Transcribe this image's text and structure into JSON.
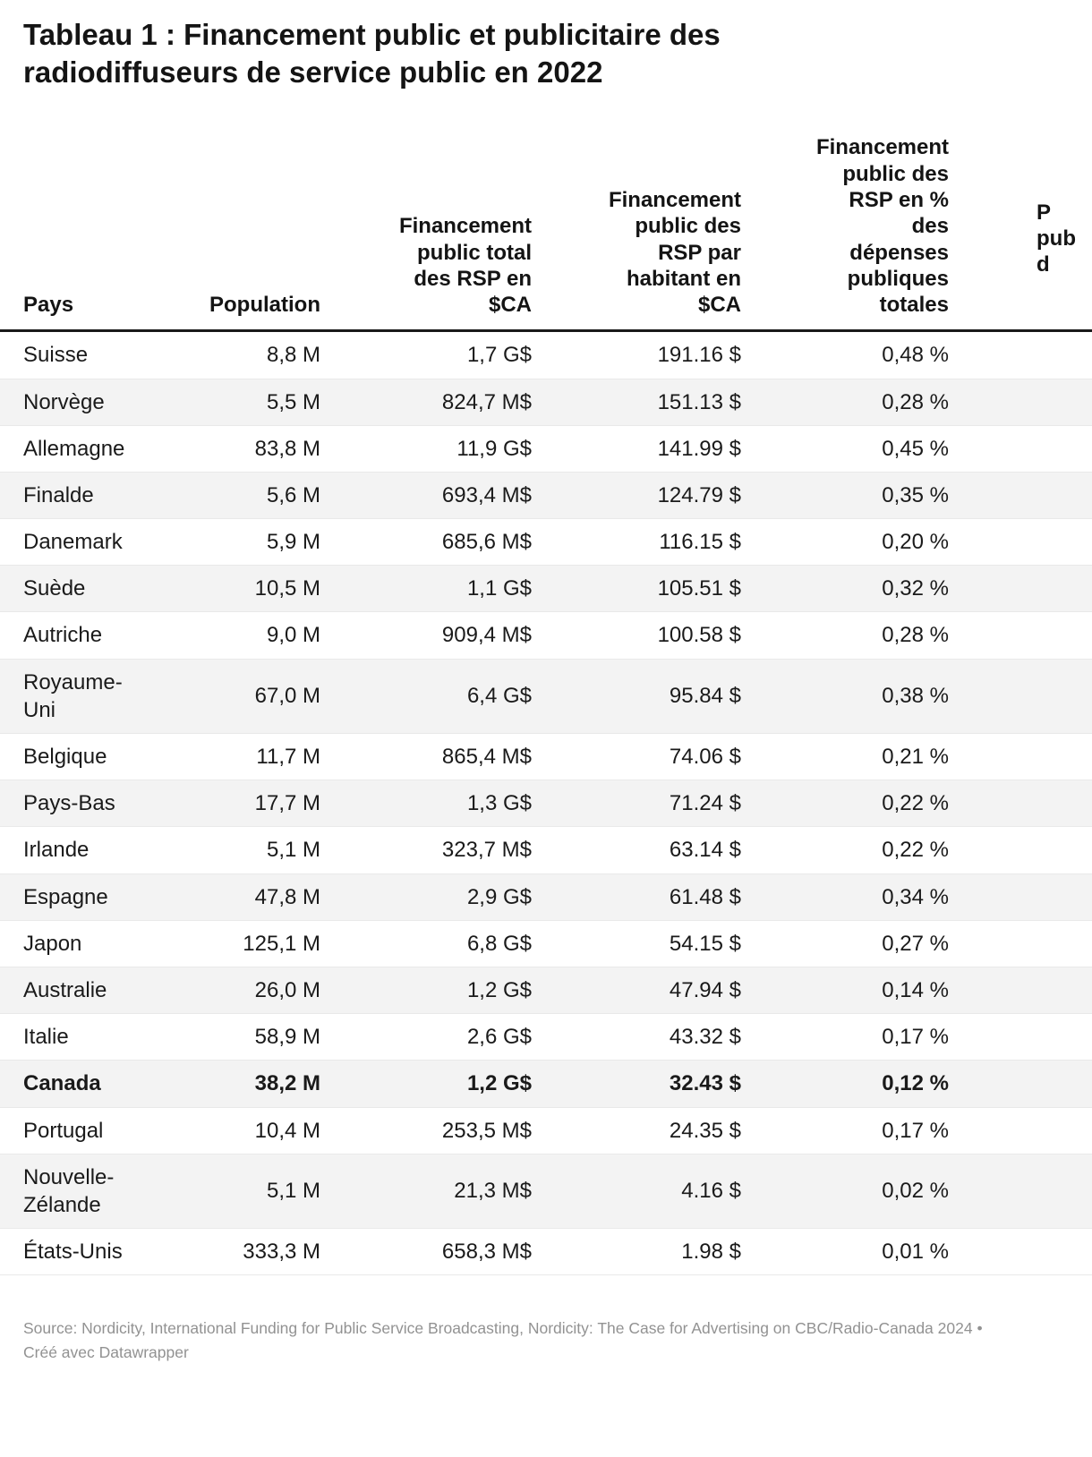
{
  "title": "Tableau 1 : Financement public et publicitaire des radiodiffuseurs de service public en 2022",
  "chart_data": {
    "type": "table",
    "title": "Tableau 1 : Financement public et publicitaire des radiodiffuseurs de service public en 2022",
    "columns": [
      {
        "label": "Pays",
        "align": "left"
      },
      {
        "label": "Population",
        "align": "right"
      },
      {
        "label": "Financement\npublic total\ndes RSP en\n$CA",
        "align": "right"
      },
      {
        "label": "Financement\npublic des\nRSP par\nhabitant en\n$CA",
        "align": "right"
      },
      {
        "label": "Financement\npublic des\nRSP en %\ndes\ndépenses\npubliques\ntotales",
        "align": "right"
      },
      {
        "label": "P\npub\nd",
        "align": "left",
        "clipped": true
      }
    ],
    "rows": [
      {
        "cells": [
          "Suisse",
          "8,8 M",
          "1,7 G$",
          "191.16 $",
          "0,48 %",
          ""
        ],
        "bold": false
      },
      {
        "cells": [
          "Norvège",
          "5,5 M",
          "824,7 M$",
          "151.13 $",
          "0,28 %",
          ""
        ],
        "bold": false
      },
      {
        "cells": [
          "Allemagne",
          "83,8 M",
          "11,9 G$",
          "141.99 $",
          "0,45 %",
          ""
        ],
        "bold": false
      },
      {
        "cells": [
          "Finalde",
          "5,6 M",
          "693,4 M$",
          "124.79 $",
          "0,35 %",
          ""
        ],
        "bold": false
      },
      {
        "cells": [
          "Danemark",
          "5,9 M",
          "685,6 M$",
          "116.15 $",
          "0,20 %",
          ""
        ],
        "bold": false
      },
      {
        "cells": [
          "Suède",
          "10,5 M",
          "1,1 G$",
          "105.51 $",
          "0,32 %",
          ""
        ],
        "bold": false
      },
      {
        "cells": [
          "Autriche",
          "9,0 M",
          "909,4 M$",
          "100.58 $",
          "0,28 %",
          ""
        ],
        "bold": false
      },
      {
        "cells": [
          "Royaume-Uni",
          "67,0 M",
          "6,4 G$",
          "95.84 $",
          "0,38 %",
          ""
        ],
        "bold": false
      },
      {
        "cells": [
          "Belgique",
          "11,7 M",
          "865,4 M$",
          "74.06 $",
          "0,21 %",
          ""
        ],
        "bold": false
      },
      {
        "cells": [
          "Pays-Bas",
          "17,7 M",
          "1,3 G$",
          "71.24 $",
          "0,22 %",
          ""
        ],
        "bold": false
      },
      {
        "cells": [
          "Irlande",
          "5,1 M",
          "323,7 M$",
          "63.14 $",
          "0,22 %",
          ""
        ],
        "bold": false
      },
      {
        "cells": [
          "Espagne",
          "47,8 M",
          "2,9 G$",
          "61.48 $",
          "0,34 %",
          ""
        ],
        "bold": false
      },
      {
        "cells": [
          "Japon",
          "125,1 M",
          "6,8 G$",
          "54.15 $",
          "0,27 %",
          ""
        ],
        "bold": false
      },
      {
        "cells": [
          "Australie",
          "26,0 M",
          "1,2 G$",
          "47.94 $",
          "0,14 %",
          ""
        ],
        "bold": false
      },
      {
        "cells": [
          "Italie",
          "58,9 M",
          "2,6 G$",
          "43.32 $",
          "0,17 %",
          ""
        ],
        "bold": false
      },
      {
        "cells": [
          "Canada",
          "38,2 M",
          "1,2 G$",
          "32.43 $",
          "0,12 %",
          ""
        ],
        "bold": true
      },
      {
        "cells": [
          "Portugal",
          "10,4 M",
          "253,5 M$",
          "24.35 $",
          "0,17 %",
          ""
        ],
        "bold": false
      },
      {
        "cells": [
          "Nouvelle-Zélande",
          "5,1 M",
          "21,3 M$",
          "4.16 $",
          "0,02 %",
          ""
        ],
        "bold": false
      },
      {
        "cells": [
          "États-Unis",
          "333,3 M",
          "658,3 M$",
          "1.98 $",
          "0,01 %",
          ""
        ],
        "bold": false
      }
    ],
    "layout": {
      "striped_rows": true,
      "highlighted_row": "Canada",
      "rightmost_column_clipped": true
    },
    "colors": {
      "stripe": "#f3f3f3",
      "header_rule": "#1a1a1a",
      "text": "#1a1a1a",
      "footer_text": "#929292"
    }
  },
  "footer": {
    "text": "Source: Nordicity, International Funding for Public Service Broadcasting, Nordicity: The Case for Advertising on CBC/Radio-Canada 2024 • Créé avec Datawrapper"
  }
}
